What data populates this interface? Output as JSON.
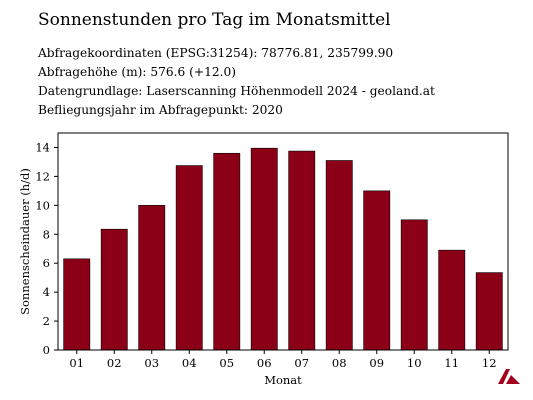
{
  "title": "Sonnenstunden pro Tag im Monatsmittel",
  "meta": [
    "Abfragekoordinaten (EPSG:31254): 78776.81, 235799.90",
    "Abfragehöhe (m): 576.6 (+12.0)",
    "Datengrundlage: Laserscanning Höhenmodell 2024 - geoland.at",
    "Befliegungsjahr im Abfragepunkt: 2020"
  ],
  "chart_data": {
    "type": "bar",
    "categories": [
      "01",
      "02",
      "03",
      "04",
      "05",
      "06",
      "07",
      "08",
      "09",
      "10",
      "11",
      "12"
    ],
    "values": [
      6.3,
      8.35,
      10.0,
      12.75,
      13.6,
      13.95,
      13.75,
      13.1,
      11.0,
      9.0,
      6.9,
      5.35
    ],
    "xlabel": "Monat",
    "ylabel": "Sonnenscheindauer (h/d)",
    "ylim": [
      0,
      15
    ],
    "yticks": [
      0,
      2,
      4,
      6,
      8,
      10,
      12,
      14
    ],
    "bar_color": "#8b0017",
    "grid": false
  },
  "logo": {
    "icon": "geoland-logo-icon",
    "color": "#a3001e"
  }
}
